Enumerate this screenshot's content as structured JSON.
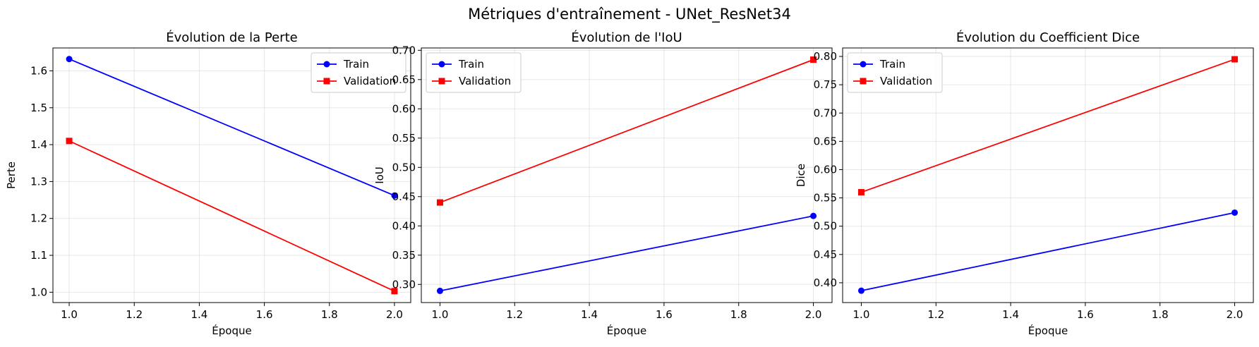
{
  "figure": {
    "suptitle": "Métriques d'entraînement - UNet_ResNet34"
  },
  "chart_data": [
    {
      "type": "line",
      "title": "Évolution de la Perte",
      "xlabel": "Époque",
      "ylabel": "Perte",
      "xlim": [
        0.95,
        2.05
      ],
      "ylim": [
        0.972,
        1.662
      ],
      "xticks": [
        1.0,
        1.2,
        1.4,
        1.6,
        1.8,
        2.0
      ],
      "xtick_labels": [
        "1.0",
        "1.2",
        "1.4",
        "1.6",
        "1.8",
        "2.0"
      ],
      "yticks": [
        1.0,
        1.1,
        1.2,
        1.3,
        1.4,
        1.5,
        1.6
      ],
      "ytick_labels": [
        "1.0",
        "1.1",
        "1.2",
        "1.3",
        "1.4",
        "1.5",
        "1.6"
      ],
      "grid": true,
      "legend_position": "top-right",
      "series": [
        {
          "name": "Train",
          "color": "#0000ff",
          "marker": "circle",
          "x": [
            1.0,
            2.0
          ],
          "y": [
            1.632,
            1.262
          ]
        },
        {
          "name": "Validation",
          "color": "#ff0000",
          "marker": "square",
          "x": [
            1.0,
            2.0
          ],
          "y": [
            1.41,
            1.003
          ]
        }
      ]
    },
    {
      "type": "line",
      "title": "Évolution de l'IoU",
      "xlabel": "Époque",
      "ylabel": "IoU",
      "xlim": [
        0.95,
        2.05
      ],
      "ylim": [
        0.269,
        0.704
      ],
      "xticks": [
        1.0,
        1.2,
        1.4,
        1.6,
        1.8,
        2.0
      ],
      "xtick_labels": [
        "1.0",
        "1.2",
        "1.4",
        "1.6",
        "1.8",
        "2.0"
      ],
      "yticks": [
        0.3,
        0.35,
        0.4,
        0.45,
        0.5,
        0.55,
        0.6,
        0.65,
        0.7
      ],
      "ytick_labels": [
        "0.30",
        "0.35",
        "0.40",
        "0.45",
        "0.50",
        "0.55",
        "0.60",
        "0.65",
        "0.70"
      ],
      "grid": true,
      "legend_position": "top-left",
      "series": [
        {
          "name": "Train",
          "color": "#0000ff",
          "marker": "circle",
          "x": [
            1.0,
            2.0
          ],
          "y": [
            0.289,
            0.417
          ]
        },
        {
          "name": "Validation",
          "color": "#ff0000",
          "marker": "square",
          "x": [
            1.0,
            2.0
          ],
          "y": [
            0.44,
            0.684
          ]
        }
      ]
    },
    {
      "type": "line",
      "title": "Évolution du Coefficient Dice",
      "xlabel": "Époque",
      "ylabel": "Dice",
      "xlim": [
        0.95,
        2.05
      ],
      "ylim": [
        0.365,
        0.815
      ],
      "xticks": [
        1.0,
        1.2,
        1.4,
        1.6,
        1.8,
        2.0
      ],
      "xtick_labels": [
        "1.0",
        "1.2",
        "1.4",
        "1.6",
        "1.8",
        "2.0"
      ],
      "yticks": [
        0.4,
        0.45,
        0.5,
        0.55,
        0.6,
        0.65,
        0.7,
        0.75,
        0.8
      ],
      "ytick_labels": [
        "0.40",
        "0.45",
        "0.50",
        "0.55",
        "0.60",
        "0.65",
        "0.70",
        "0.75",
        "0.80"
      ],
      "grid": true,
      "legend_position": "top-left",
      "series": [
        {
          "name": "Train",
          "color": "#0000ff",
          "marker": "circle",
          "x": [
            1.0,
            2.0
          ],
          "y": [
            0.386,
            0.524
          ]
        },
        {
          "name": "Validation",
          "color": "#ff0000",
          "marker": "square",
          "x": [
            1.0,
            2.0
          ],
          "y": [
            0.56,
            0.795
          ]
        }
      ]
    }
  ]
}
